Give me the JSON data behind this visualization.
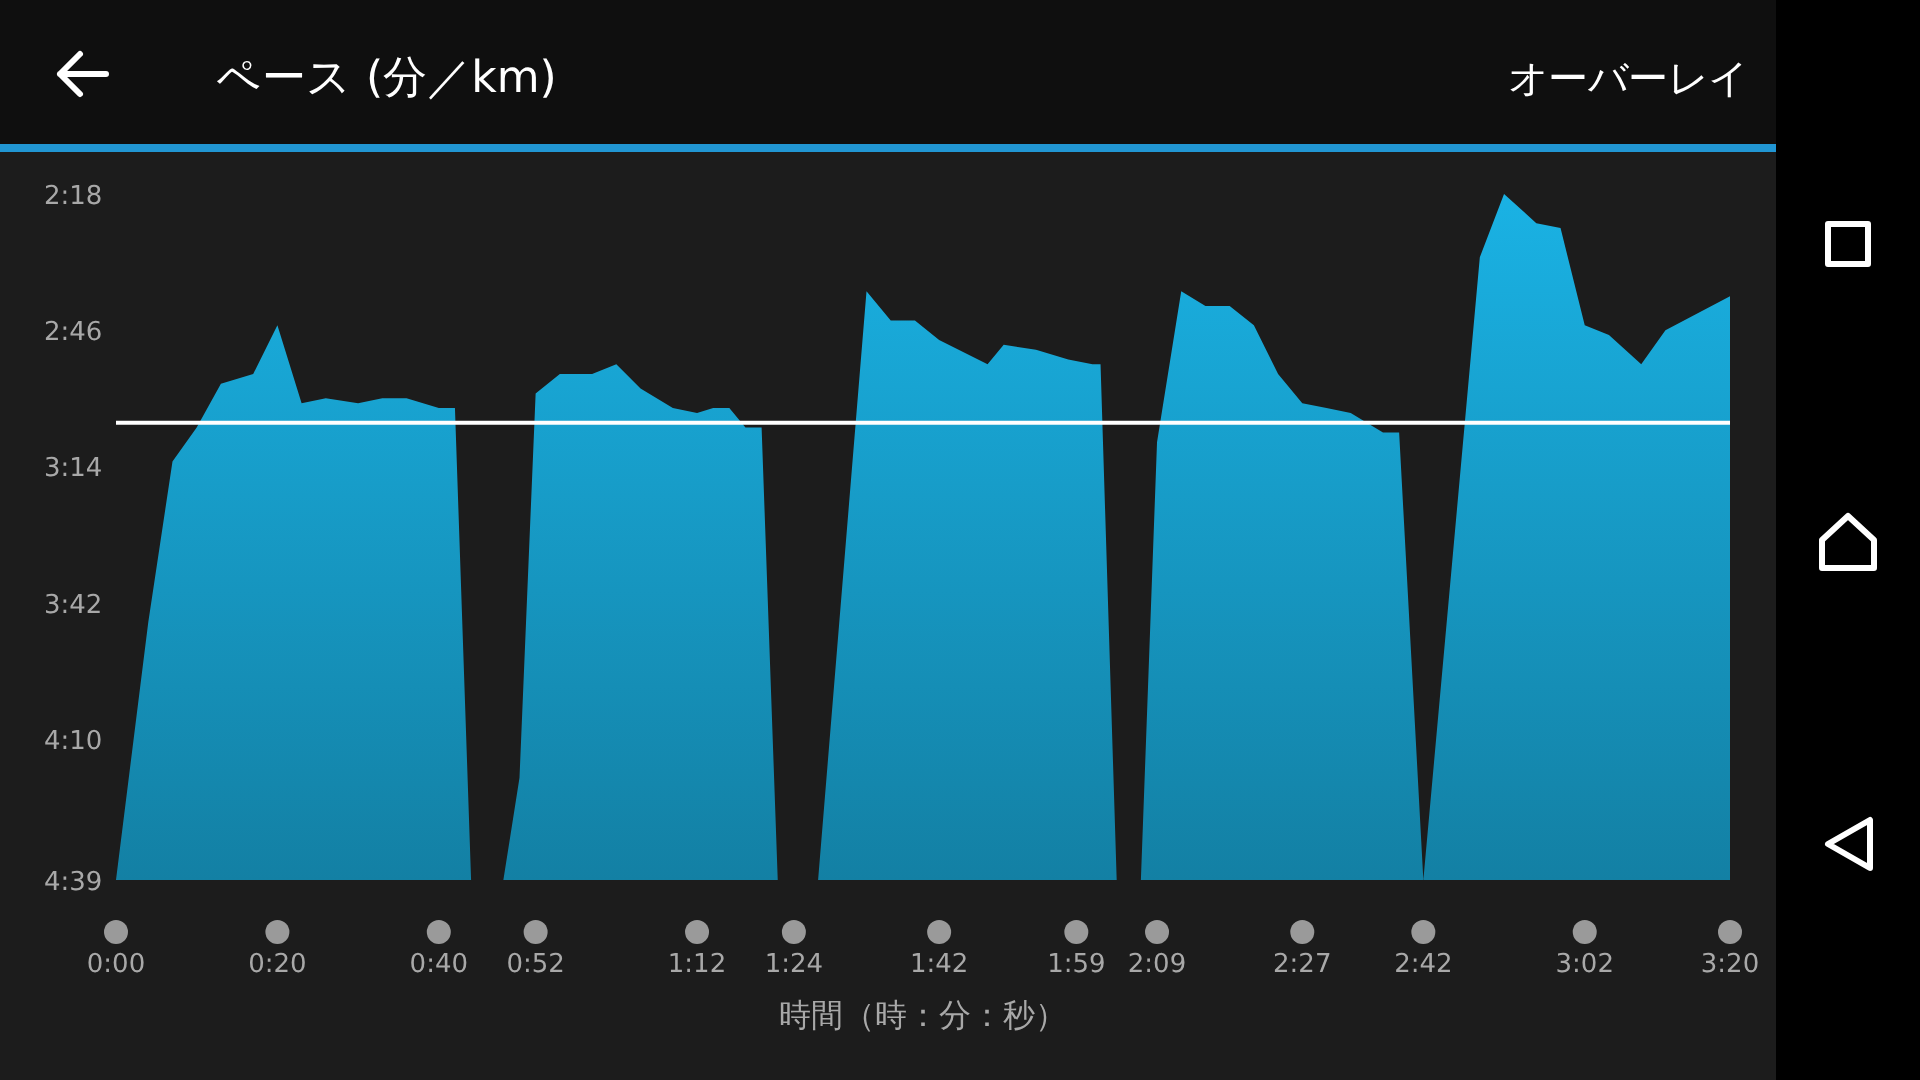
{
  "chart_data": {
    "type": "area",
    "title": "ペース (分／km)",
    "xlabel": "時間（時：分：秒）",
    "annotations": [
      "オーバーレイ"
    ],
    "xlim": [
      0,
      200
    ],
    "xticks": [
      {
        "value": 0,
        "label": "0:00"
      },
      {
        "value": 20,
        "label": "0:20"
      },
      {
        "value": 40,
        "label": "0:40"
      },
      {
        "value": 52,
        "label": "0:52"
      },
      {
        "value": 72,
        "label": "1:12"
      },
      {
        "value": 84,
        "label": "1:24"
      },
      {
        "value": 102,
        "label": "1:42"
      },
      {
        "value": 119,
        "label": "1:59"
      },
      {
        "value": 129,
        "label": "2:09"
      },
      {
        "value": 147,
        "label": "2:27"
      },
      {
        "value": 162,
        "label": "2:42"
      },
      {
        "value": 182,
        "label": "3:02"
      },
      {
        "value": 200,
        "label": "3:20"
      }
    ],
    "ylim": [
      279,
      138
    ],
    "yticks": [
      {
        "value": 138,
        "label": "2:18"
      },
      {
        "value": 166,
        "label": "2:46"
      },
      {
        "value": 194,
        "label": "3:14"
      },
      {
        "value": 222,
        "label": "3:42"
      },
      {
        "value": 250,
        "label": "4:10"
      },
      {
        "value": 279,
        "label": "4:39"
      }
    ],
    "ref_lines": [
      {
        "axis": "y",
        "value": 185,
        "color": "#ffffff"
      }
    ],
    "series": [
      {
        "color": "#1ab2e4",
        "x": [
          0,
          4,
          7,
          10,
          13,
          17,
          20,
          23,
          26,
          30,
          33,
          36,
          40,
          42,
          44,
          46,
          48,
          50,
          52,
          55,
          59,
          62,
          65,
          69,
          72,
          74,
          76,
          78,
          80,
          82,
          84,
          87,
          93,
          96,
          99,
          102,
          108,
          110,
          114,
          118,
          121,
          122,
          124,
          126,
          127,
          129,
          132,
          135,
          138,
          141,
          144,
          147,
          150,
          153,
          155,
          157,
          159,
          162,
          169,
          172,
          176,
          179,
          182,
          185,
          189,
          192,
          200,
          200
        ],
        "values": [
          279,
          226,
          193,
          186,
          177,
          175,
          165,
          181,
          180,
          181,
          180,
          180,
          182,
          182,
          279,
          null,
          279,
          258,
          179,
          175,
          175,
          173,
          178,
          182,
          183,
          182,
          182,
          186,
          186,
          279,
          null,
          279,
          158,
          164,
          164,
          168,
          173,
          169,
          170,
          172,
          173,
          173,
          279,
          null,
          279,
          189,
          158,
          161,
          161,
          165,
          175,
          181,
          182,
          183,
          185,
          187,
          187,
          279,
          151,
          138,
          144,
          145,
          165,
          167,
          173,
          166,
          159,
          279
        ]
      }
    ]
  }
}
